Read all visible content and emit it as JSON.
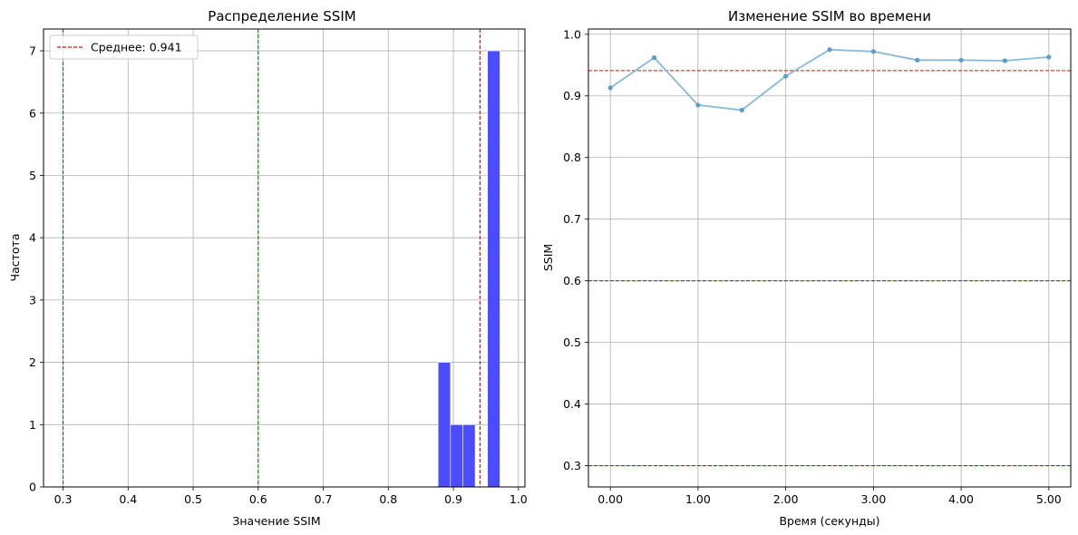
{
  "chart_data": [
    {
      "type": "bar",
      "title": "Распределение SSIM",
      "xlabel": "Значение SSIM",
      "ylabel": "Частота",
      "xlim": [
        0.27,
        1.01
      ],
      "ylim": [
        0,
        7.35
      ],
      "xticks": [
        0.3,
        0.4,
        0.5,
        0.6,
        0.7,
        0.8,
        0.9,
        1.0
      ],
      "xtick_labels": [
        "0.3",
        "0.4",
        "0.5",
        "0.6",
        "0.7",
        "0.8",
        "0.9",
        "1.0"
      ],
      "yticks": [
        0,
        1,
        2,
        3,
        4,
        5,
        6,
        7
      ],
      "ytick_labels": [
        "0",
        "1",
        "2",
        "3",
        "4",
        "5",
        "6",
        "7"
      ],
      "grid": true,
      "bar_color": "#4b4bff",
      "bins": [
        {
          "x0": 0.8765,
          "x1": 0.8955,
          "count": 2
        },
        {
          "x0": 0.8955,
          "x1": 0.9145,
          "count": 1
        },
        {
          "x0": 0.9145,
          "x1": 0.9335,
          "count": 1
        },
        {
          "x0": 0.9525,
          "x1": 0.9715,
          "count": 7
        }
      ],
      "mean_line": {
        "x": 0.941,
        "color": "#ff0000"
      },
      "threshold_lines": [
        {
          "x": 0.3,
          "color": "#008000"
        },
        {
          "x": 0.6,
          "color": "#008000"
        }
      ],
      "legend": {
        "placement": "upper-left",
        "entries": [
          {
            "label": "Среднее: 0.941",
            "color": "#ff0000",
            "style": "dashed"
          }
        ]
      }
    },
    {
      "type": "line",
      "title": "Изменение SSIM во времени",
      "xlabel": "Время (секунды)",
      "ylabel": "SSIM",
      "xlim": [
        -0.25,
        5.25
      ],
      "ylim": [
        0.2655,
        1.0085
      ],
      "xticks": [
        0,
        1,
        2,
        3,
        4,
        5
      ],
      "xtick_labels": [
        "0.00",
        "1.00",
        "2.00",
        "3.00",
        "4.00",
        "5.00"
      ],
      "yticks": [
        0.3,
        0.4,
        0.5,
        0.6,
        0.7,
        0.8,
        0.9,
        1.0
      ],
      "ytick_labels": [
        "0.3",
        "0.4",
        "0.5",
        "0.6",
        "0.7",
        "0.8",
        "0.9",
        "1.0"
      ],
      "grid": true,
      "line_color": "#8ab9d8",
      "marker_color": "#5b9ec9",
      "x": [
        0.0,
        0.5,
        1.0,
        1.5,
        2.0,
        2.5,
        3.0,
        3.5,
        4.0,
        4.5,
        5.0
      ],
      "y": [
        0.913,
        0.962,
        0.885,
        0.877,
        0.932,
        0.975,
        0.972,
        0.958,
        0.958,
        0.957,
        0.963
      ],
      "mean_line": {
        "y": 0.941,
        "color": "#ff0000"
      },
      "threshold_lines": [
        {
          "y": 0.6,
          "color": "#008000"
        },
        {
          "y": 0.3,
          "color": "#008000"
        }
      ]
    }
  ]
}
